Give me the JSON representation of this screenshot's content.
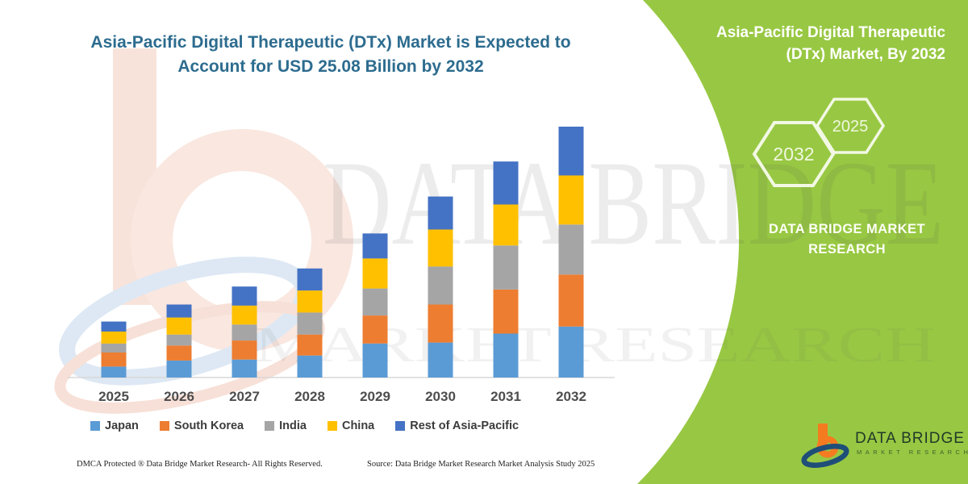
{
  "page": {
    "accent_green": "#98c843",
    "background": "#ffffff",
    "title_color": "#2d6c8f"
  },
  "main": {
    "title_line1": "Asia-Pacific Digital Therapeutic (DTx) Market is Expected to",
    "title_line2": "Account for USD 25.08 Billion by 2032"
  },
  "chart_data": {
    "type": "bar",
    "stacked": true,
    "title": "Asia-Pacific Digital Therapeutic (DTx) Market is Expected to Account for USD 25.08 Billion by 2032",
    "unit": "USD Billion",
    "categories": [
      "2025",
      "2026",
      "2027",
      "2028",
      "2029",
      "2030",
      "2031",
      "2032"
    ],
    "series": [
      {
        "name": "Japan",
        "color": "#5B9BD5",
        "values": [
          1.1,
          1.7,
          1.8,
          2.2,
          3.4,
          3.5,
          4.4,
          5.1
        ]
      },
      {
        "name": "South Korea",
        "color": "#ED7D31",
        "values": [
          1.4,
          1.5,
          1.9,
          2.1,
          2.8,
          3.8,
          4.4,
          5.2
        ]
      },
      {
        "name": "India",
        "color": "#A5A5A5",
        "values": [
          0.9,
          1.1,
          1.6,
          2.2,
          2.7,
          3.8,
          4.4,
          5.0
        ]
      },
      {
        "name": "China",
        "color": "#FFC000",
        "values": [
          1.2,
          1.7,
          1.9,
          2.2,
          3.0,
          3.7,
          4.1,
          4.9
        ]
      },
      {
        "name": "Rest of Asia-Pacific",
        "color": "#4472C4",
        "values": [
          1.0,
          1.3,
          1.9,
          2.2,
          2.5,
          3.3,
          4.3,
          4.88
        ]
      }
    ],
    "totals": [
      5.6,
      7.3,
      9.1,
      10.9,
      14.4,
      18.1,
      21.6,
      25.08
    ],
    "ylim": [
      0,
      26
    ],
    "grid": false,
    "legend_position": "bottom",
    "annotation": "USD 25.08 Billion by 2032"
  },
  "watermark": {
    "text_large": "DATA BRIDGE",
    "text_small": "MARKET RESEARCH"
  },
  "side_panel": {
    "title_line1": "Asia-Pacific Digital Therapeutic",
    "title_line2": "(DTx) Market, By 2032",
    "hexagons": [
      {
        "label": "2032"
      },
      {
        "label": "2025"
      }
    ],
    "brand_line1": "DATA BRIDGE MARKET",
    "brand_line2": "RESEARCH"
  },
  "footer": {
    "left": "DMCA Protected ® Data Bridge Market Research-  All Rights Reserved.",
    "right": "Source: Data Bridge Market Research  Market Analysis Study 2025"
  },
  "logo": {
    "name": "DATA BRIDGE",
    "subtitle": "MARKET RESEARCH",
    "orange": "#f47b20",
    "blue": "#1f4e79"
  }
}
